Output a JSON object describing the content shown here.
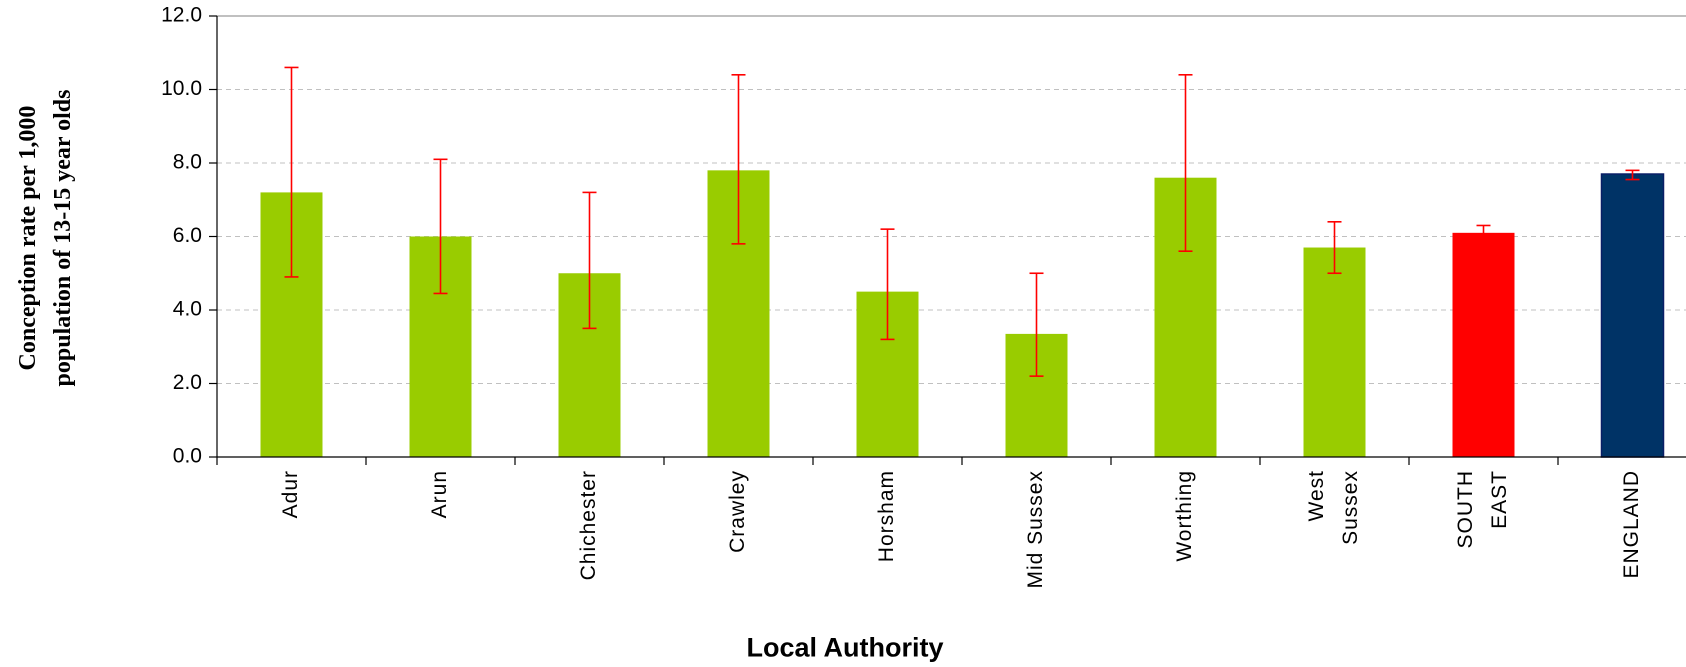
{
  "chart_data": {
    "type": "bar",
    "title": "",
    "xlabel": "Local Authority",
    "ylabel_lines": [
      "Conception rate per 1,000",
      "population of 13-15 year olds"
    ],
    "ylim": [
      0,
      12
    ],
    "yticks": [
      "0.0",
      "2.0",
      "4.0",
      "6.0",
      "8.0",
      "10.0",
      "12.0"
    ],
    "grid": true,
    "categories": [
      [
        "Adur"
      ],
      [
        "Arun"
      ],
      [
        "Chichester"
      ],
      [
        "Crawley"
      ],
      [
        "Horsham"
      ],
      [
        "Mid Sussex"
      ],
      [
        "Worthing"
      ],
      [
        "West",
        "Sussex"
      ],
      [
        "SOUTH",
        "EAST"
      ],
      [
        "ENGLAND"
      ]
    ],
    "values": [
      7.2,
      6.0,
      5.0,
      7.8,
      4.5,
      3.35,
      7.6,
      5.7,
      6.1,
      7.7
    ],
    "error_low": [
      4.9,
      4.45,
      3.5,
      5.8,
      3.2,
      2.2,
      5.6,
      5.0,
      5.95,
      7.55
    ],
    "error_high": [
      10.6,
      8.1,
      7.2,
      10.4,
      6.2,
      5.0,
      10.4,
      6.4,
      6.3,
      7.8
    ],
    "bar_colors": [
      "#99cc00",
      "#99cc00",
      "#99cc00",
      "#99cc00",
      "#99cc00",
      "#99cc00",
      "#99cc00",
      "#99cc00",
      "#ff0000",
      "#003366"
    ],
    "error_color": "#ff0000"
  }
}
